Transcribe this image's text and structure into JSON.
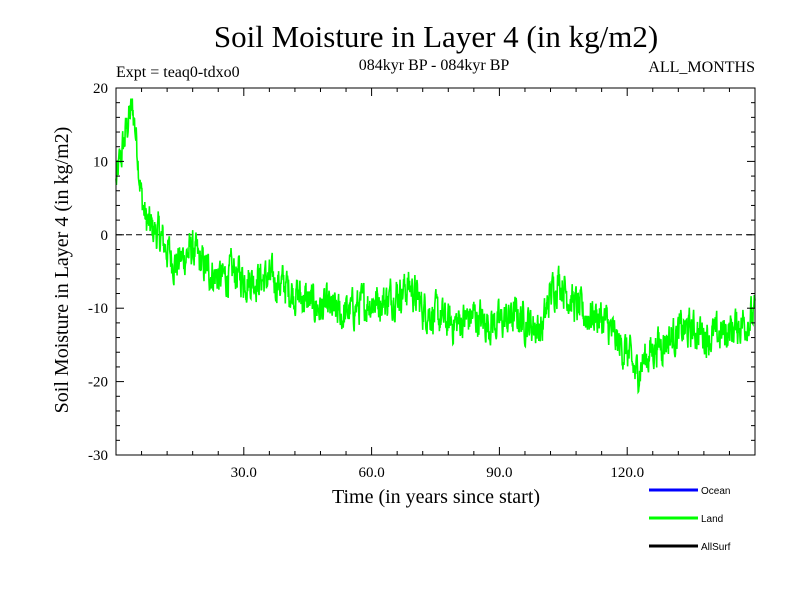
{
  "chart_data": {
    "type": "line",
    "title": "Soil Moisture in Layer 4 (in kg/m2)",
    "subtitle_left": "Expt = teaq0-tdxo0",
    "subtitle_center": "084kyr BP - 084kyr BP",
    "subtitle_right": "ALL_MONTHS",
    "xlabel": "Time (in years since start)",
    "ylabel": "Soil Moisture in Layer 4 (in kg/m2)",
    "xlim": [
      0,
      150
    ],
    "ylim": [
      -30,
      20
    ],
    "xticks": [
      30,
      60,
      90,
      120
    ],
    "xtick_labels": [
      "30.0",
      "60.0",
      "90.0",
      "120.0"
    ],
    "yticks": [
      -30,
      -20,
      -10,
      0,
      10,
      20
    ],
    "ytick_labels": [
      "-30",
      "-20",
      "-10",
      "0",
      "10",
      "20"
    ],
    "reference_line": 0,
    "legend": [
      {
        "name": "Ocean",
        "color": "#0000ff"
      },
      {
        "name": "Land",
        "color": "#00ff00"
      },
      {
        "name": "AllSurf",
        "color": "#000000"
      }
    ],
    "series": [
      {
        "name": "Land",
        "color": "#00ff00",
        "points_per_year": 12,
        "x": [
          0,
          1,
          2,
          3,
          4,
          5,
          6,
          7,
          8,
          10,
          12,
          14,
          16,
          18,
          20,
          22,
          25,
          28,
          30,
          33,
          36,
          40,
          42,
          45,
          48,
          50,
          53,
          56,
          60,
          63,
          66,
          69,
          72,
          75,
          78,
          80,
          84,
          87,
          90,
          94,
          97,
          100,
          102,
          104,
          107,
          110,
          113,
          115,
          118,
          120,
          122,
          124,
          127,
          130,
          133,
          136,
          140,
          144,
          147,
          150
        ],
        "values": [
          7,
          10,
          13,
          16,
          17,
          12,
          5,
          2,
          1,
          0,
          -2,
          -4,
          -3,
          -2,
          -4,
          -5,
          -6,
          -5,
          -6,
          -6,
          -6,
          -7,
          -8,
          -9,
          -10,
          -10,
          -11,
          -10,
          -9,
          -9,
          -8,
          -7,
          -10,
          -11,
          -12,
          -12,
          -11,
          -12,
          -12,
          -11,
          -12,
          -13,
          -8,
          -6,
          -9,
          -11,
          -11,
          -12,
          -15,
          -16,
          -19,
          -17,
          -15,
          -14,
          -13,
          -13,
          -14,
          -13,
          -12,
          -11
        ]
      }
    ]
  }
}
